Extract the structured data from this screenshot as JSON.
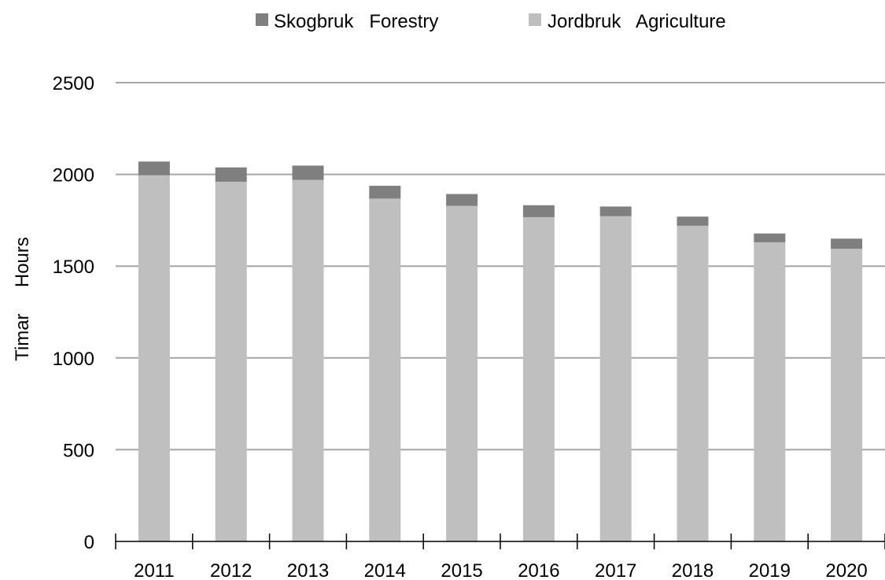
{
  "chart_data": {
    "type": "bar",
    "stacked": true,
    "categories": [
      "2011",
      "2012",
      "2013",
      "2014",
      "2015",
      "2016",
      "2017",
      "2018",
      "2019",
      "2020"
    ],
    "series": [
      {
        "name": "Jordbruk   Agriculture",
        "color": "#bfbfbf",
        "values": [
          1995,
          1960,
          1970,
          1868,
          1828,
          1767,
          1772,
          1720,
          1630,
          1595
        ]
      },
      {
        "name": "Skogbruk   Forestry",
        "color": "#7f7f7f",
        "values": [
          75,
          78,
          78,
          70,
          65,
          65,
          53,
          50,
          48,
          55
        ]
      }
    ],
    "ylabel": "Timar     Hours",
    "ylim": [
      0,
      2500
    ],
    "yticks": [
      "0",
      "500",
      "1000",
      "1500",
      "2000",
      "2500"
    ],
    "grid": true,
    "legend_position": "top"
  }
}
